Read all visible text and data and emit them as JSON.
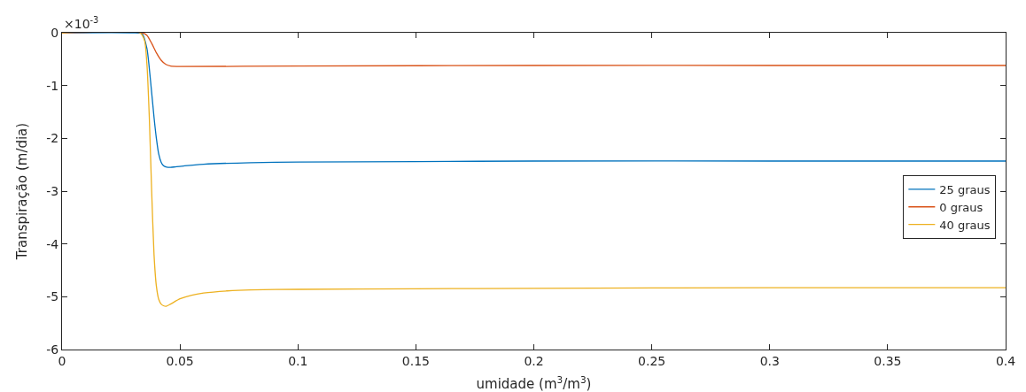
{
  "chart_data": {
    "type": "line",
    "xlabel": "umidade (m$^{3}$/m$^{3}$)",
    "ylabel": "Transpiração (m/dia)",
    "annotations": [
      "×10$^{-3}$"
    ],
    "xlim": [
      0,
      0.4
    ],
    "xticks": [
      0,
      0.05,
      0.1,
      0.15,
      0.2,
      0.25,
      0.3,
      0.35,
      0.4
    ],
    "ylim": [
      -6,
      0
    ],
    "yticks": [
      -6,
      -5,
      -4,
      -3,
      -2,
      -1,
      0
    ],
    "grid": false,
    "legend": "right",
    "line_style": "solid",
    "marker": "none",
    "series": [
      {
        "name": "25 graus",
        "color": "#0072bd",
        "x": [
          0,
          0.03,
          0.034,
          0.036,
          0.0375,
          0.039,
          0.04,
          0.041,
          0.042,
          0.043,
          0.044,
          0.046,
          0.048,
          0.052,
          0.06,
          0.08,
          0.1,
          0.15,
          0.2,
          0.3,
          0.4
        ],
        "values": [
          0,
          0,
          -0.02,
          -0.3,
          -0.9,
          -1.6,
          -2.0,
          -2.3,
          -2.45,
          -2.52,
          -2.54,
          -2.55,
          -2.54,
          -2.52,
          -2.49,
          -2.46,
          -2.45,
          -2.44,
          -2.43,
          -2.43,
          -2.43
        ]
      },
      {
        "name": "0 graus",
        "color": "#d95319",
        "x": [
          0,
          0.034,
          0.036,
          0.038,
          0.04,
          0.042,
          0.044,
          0.046,
          0.05,
          0.1,
          0.2,
          0.3,
          0.4
        ],
        "values": [
          0,
          0,
          -0.05,
          -0.2,
          -0.38,
          -0.52,
          -0.6,
          -0.63,
          -0.64,
          -0.63,
          -0.62,
          -0.62,
          -0.62
        ]
      },
      {
        "name": "40 graus",
        "color": "#edb120",
        "x": [
          0,
          0.033,
          0.035,
          0.036,
          0.037,
          0.038,
          0.039,
          0.04,
          0.041,
          0.042,
          0.043,
          0.0442,
          0.046,
          0.05,
          0.055,
          0.06,
          0.07,
          0.08,
          0.1,
          0.15,
          0.2,
          0.3,
          0.4
        ],
        "values": [
          0,
          0,
          -0.15,
          -0.6,
          -1.6,
          -3.0,
          -4.2,
          -4.8,
          -5.05,
          -5.14,
          -5.17,
          -5.18,
          -5.14,
          -5.04,
          -4.97,
          -4.93,
          -4.89,
          -4.87,
          -4.86,
          -4.85,
          -4.84,
          -4.83,
          -4.83
        ]
      }
    ]
  }
}
